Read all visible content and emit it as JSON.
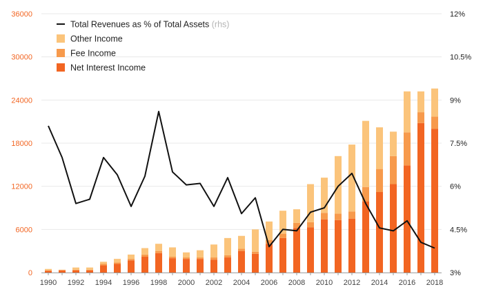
{
  "chart_data": {
    "type": "bar+line",
    "title": "",
    "xlabel": "",
    "ylabel": "",
    "x": [
      1990,
      1991,
      1992,
      1993,
      1994,
      1995,
      1996,
      1997,
      1998,
      1999,
      2000,
      2001,
      2002,
      2003,
      2004,
      2005,
      2006,
      2007,
      2008,
      2009,
      2010,
      2011,
      2012,
      2013,
      2014,
      2015,
      2016,
      2017,
      2018
    ],
    "x_tick_labels": [
      "1990",
      "1992",
      "1994",
      "1996",
      "1998",
      "2000",
      "2002",
      "2004",
      "2006",
      "2008",
      "2010",
      "2012",
      "2014",
      "2016",
      "2018"
    ],
    "x_tick_values": [
      1990,
      1992,
      1994,
      1996,
      1998,
      2000,
      2002,
      2004,
      2006,
      2008,
      2010,
      2012,
      2014,
      2016,
      2018
    ],
    "ylim_left": [
      0,
      36000
    ],
    "yticks_left": [
      0,
      6000,
      12000,
      18000,
      24000,
      30000,
      36000
    ],
    "ytick_labels_left": [
      "0",
      "6000",
      "12000",
      "18000",
      "24000",
      "30000",
      "36000"
    ],
    "ylim_right": [
      3,
      12
    ],
    "yticks_right": [
      3,
      4.5,
      6,
      7.5,
      9,
      10.5,
      12
    ],
    "ytick_labels_right": [
      "3%",
      "4.5%",
      "6%",
      "7.5%",
      "9%",
      "10.5%",
      "12%"
    ],
    "grid": true,
    "legend_position": "top-left",
    "series": [
      {
        "name": "Net Interest Income",
        "kind": "bar-stack",
        "color": "#f26522",
        "values": [
          250,
          300,
          300,
          300,
          1000,
          1200,
          1700,
          2200,
          2700,
          2000,
          1900,
          1900,
          1800,
          2100,
          3000,
          2600,
          4000,
          4800,
          6200,
          6300,
          7400,
          7300,
          7500,
          9900,
          11200,
          12300,
          14900,
          20800,
          20000
        ]
      },
      {
        "name": "Fee Income",
        "kind": "bar-stack",
        "color": "#f79a4c",
        "values": [
          50,
          50,
          100,
          100,
          200,
          200,
          200,
          300,
          300,
          200,
          200,
          200,
          300,
          300,
          300,
          300,
          500,
          600,
          700,
          700,
          900,
          900,
          1000,
          2000,
          3200,
          3900,
          4600,
          1500,
          1700
        ]
      },
      {
        "name": "Other Income",
        "kind": "bar-stack",
        "color": "#fbc47b",
        "values": [
          200,
          50,
          300,
          300,
          300,
          500,
          600,
          900,
          1000,
          1300,
          700,
          1000,
          1800,
          2400,
          1800,
          3100,
          2600,
          3200,
          1900,
          5300,
          4900,
          8000,
          9300,
          9200,
          5800,
          3400,
          5700,
          2900,
          3900
        ]
      },
      {
        "name": "Total Revenues as % of Total Assets",
        "note": "(rhs)",
        "kind": "line",
        "axis": "right",
        "color": "#111111",
        "values": [
          8.1,
          7.0,
          5.4,
          5.55,
          7.0,
          6.4,
          5.3,
          6.35,
          8.6,
          6.5,
          6.05,
          6.1,
          5.3,
          6.3,
          5.05,
          5.6,
          3.9,
          4.5,
          4.45,
          5.1,
          5.25,
          6.0,
          6.45,
          5.4,
          4.55,
          4.45,
          4.8,
          4.05,
          3.85
        ]
      }
    ]
  }
}
